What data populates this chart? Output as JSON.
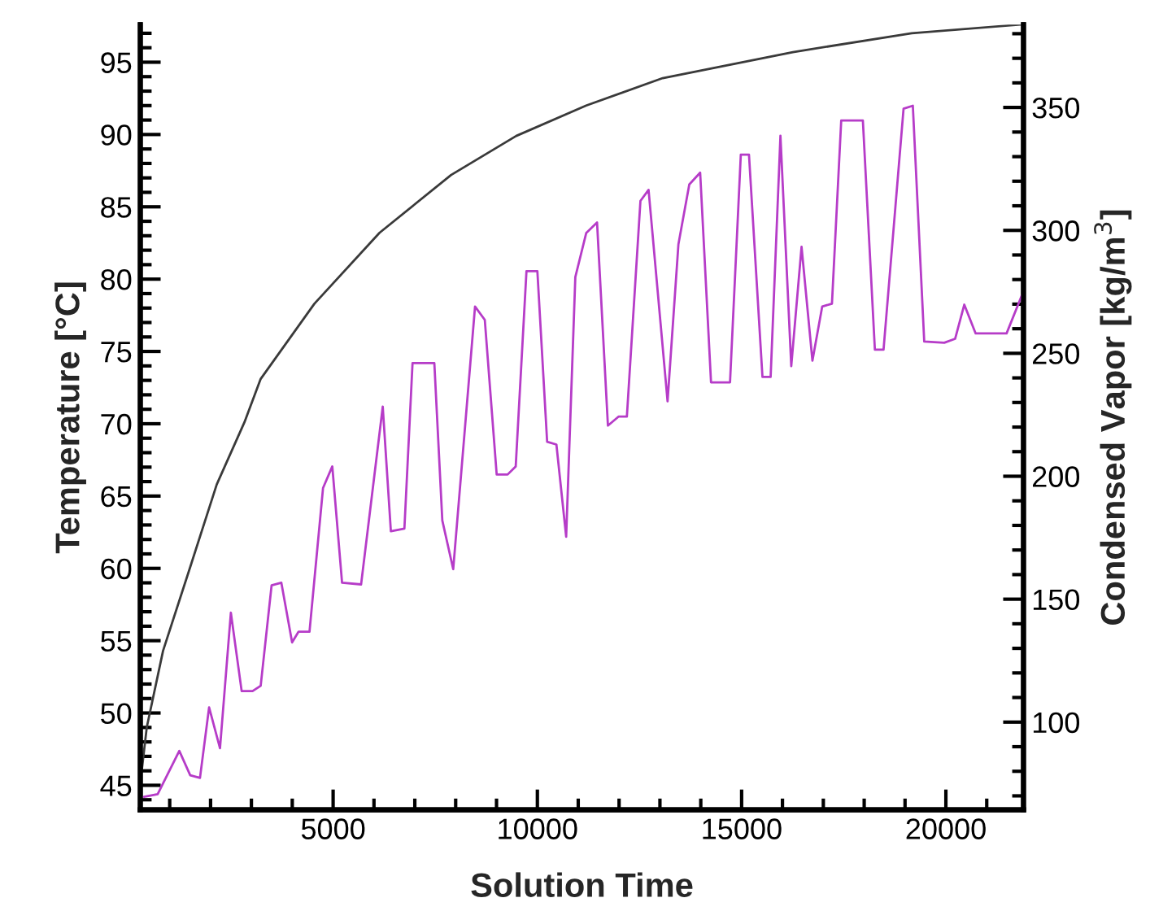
{
  "chart_data": {
    "type": "line",
    "xlabel": "Solution Time",
    "ylabel": "Temperature [°C]",
    "y2label": "Condensed Vapor [kg/m$^{3}$]",
    "xlim": [
      280,
      21900
    ],
    "ylim": [
      43.3,
      97.6
    ],
    "y2lim": [
      64.3,
      383.7
    ],
    "xticks": [
      {
        "value": 1000,
        "label": null
      },
      {
        "value": 2000,
        "label": null
      },
      {
        "value": 3000,
        "label": null
      },
      {
        "value": 4000,
        "label": null
      },
      5000,
      {
        "value": 6000,
        "label": null
      },
      {
        "value": 7000,
        "label": null
      },
      {
        "value": 8000,
        "label": null
      },
      {
        "value": 9000,
        "label": null
      },
      10000,
      {
        "value": 11000,
        "label": null
      },
      {
        "value": 12000,
        "label": null
      },
      {
        "value": 13000,
        "label": null
      },
      {
        "value": 14000,
        "label": null
      },
      15000,
      {
        "value": 16000,
        "label": null
      },
      {
        "value": 17000,
        "label": null
      },
      {
        "value": 18000,
        "label": null
      },
      {
        "value": 19000,
        "label": null
      },
      20000,
      {
        "value": 21000,
        "label": null
      }
    ],
    "yticks": [
      {
        "value": 44,
        "label": null
      },
      45,
      {
        "value": 46,
        "label": null
      },
      {
        "value": 47,
        "label": null
      },
      {
        "value": 48,
        "label": null
      },
      {
        "value": 49,
        "label": null
      },
      50,
      {
        "value": 51,
        "label": null
      },
      {
        "value": 52,
        "label": null
      },
      {
        "value": 53,
        "label": null
      },
      {
        "value": 54,
        "label": null
      },
      55,
      {
        "value": 56,
        "label": null
      },
      {
        "value": 57,
        "label": null
      },
      {
        "value": 58,
        "label": null
      },
      {
        "value": 59,
        "label": null
      },
      60,
      {
        "value": 61,
        "label": null
      },
      {
        "value": 62,
        "label": null
      },
      {
        "value": 63,
        "label": null
      },
      {
        "value": 64,
        "label": null
      },
      65,
      {
        "value": 66,
        "label": null
      },
      {
        "value": 67,
        "label": null
      },
      {
        "value": 68,
        "label": null
      },
      {
        "value": 69,
        "label": null
      },
      70,
      {
        "value": 71,
        "label": null
      },
      {
        "value": 72,
        "label": null
      },
      {
        "value": 73,
        "label": null
      },
      {
        "value": 74,
        "label": null
      },
      75,
      {
        "value": 76,
        "label": null
      },
      {
        "value": 77,
        "label": null
      },
      {
        "value": 78,
        "label": null
      },
      {
        "value": 79,
        "label": null
      },
      80,
      {
        "value": 81,
        "label": null
      },
      {
        "value": 82,
        "label": null
      },
      {
        "value": 83,
        "label": null
      },
      {
        "value": 84,
        "label": null
      },
      85,
      {
        "value": 86,
        "label": null
      },
      {
        "value": 87,
        "label": null
      },
      {
        "value": 88,
        "label": null
      },
      {
        "value": 89,
        "label": null
      },
      90,
      {
        "value": 91,
        "label": null
      },
      {
        "value": 92,
        "label": null
      },
      {
        "value": 93,
        "label": null
      },
      {
        "value": 94,
        "label": null
      },
      95,
      {
        "value": 96,
        "label": null
      },
      {
        "value": 97,
        "label": null
      }
    ],
    "y2ticks": [
      {
        "value": 70,
        "label": null
      },
      {
        "value": 80,
        "label": null
      },
      {
        "value": 90,
        "label": null
      },
      100,
      {
        "value": 110,
        "label": null
      },
      {
        "value": 120,
        "label": null
      },
      {
        "value": 130,
        "label": null
      },
      {
        "value": 140,
        "label": null
      },
      150,
      {
        "value": 160,
        "label": null
      },
      {
        "value": 170,
        "label": null
      },
      {
        "value": 180,
        "label": null
      },
      {
        "value": 190,
        "label": null
      },
      200,
      {
        "value": 210,
        "label": null
      },
      {
        "value": 220,
        "label": null
      },
      {
        "value": 230,
        "label": null
      },
      {
        "value": 240,
        "label": null
      },
      250,
      {
        "value": 260,
        "label": null
      },
      {
        "value": 270,
        "label": null
      },
      {
        "value": 280,
        "label": null
      },
      {
        "value": 290,
        "label": null
      },
      300,
      {
        "value": 310,
        "label": null
      },
      {
        "value": 320,
        "label": null
      },
      {
        "value": 330,
        "label": null
      },
      {
        "value": 340,
        "label": null
      },
      350,
      {
        "value": 360,
        "label": null
      },
      {
        "value": 370,
        "label": null
      },
      {
        "value": 380,
        "label": null
      }
    ],
    "series": [
      {
        "color": "#3a3a3a",
        "x": [
          319,
          438,
          837,
          1514,
          2151,
          2829,
          3227,
          4542,
          6135,
          7888,
          9482,
          11195,
          13068,
          16255,
          19163,
          21832
        ],
        "values": [
          46.1,
          49.0,
          54.3,
          60.2,
          65.8,
          70.1,
          73.1,
          78.3,
          83.2,
          87.2,
          89.9,
          92.0,
          93.9,
          95.7,
          97.0,
          97.6
        ]
      },
      {
        "color": "#b63cc8",
        "axis": "y2",
        "x": [
          371,
          705,
          1235,
          1502,
          1741,
          1964,
          2231,
          2497,
          2761,
          3028,
          3227,
          3494,
          3733,
          3996,
          4155,
          4422,
          4753,
          4980,
          5219,
          5685,
          6215,
          6414,
          6745,
          6944,
          7478,
          7673,
          7940,
          8474,
          8713,
          9004,
          9271,
          9470,
          9733,
          10000,
          10239,
          10466,
          10705,
          10929,
          11195,
          11461,
          11727,
          11992,
          12191,
          12523,
          12722,
          13187,
          13453,
          13719,
          13985,
          14251,
          14716,
          14980,
          15180,
          15510,
          15710,
          15950,
          16215,
          16467,
          16733,
          16972,
          17211,
          17438,
          17968,
          18262,
          18474,
          18964,
          19191,
          19470,
          19960,
          20226,
          20450,
          20729,
          21486,
          21884
        ],
        "values": [
          69.6,
          70.7,
          88.3,
          78.4,
          77.3,
          106,
          89.4,
          144.5,
          112.6,
          112.6,
          114.8,
          155.6,
          156.7,
          132.4,
          136.8,
          136.8,
          195.2,
          204,
          156.7,
          156,
          228.3,
          177.6,
          178.7,
          246,
          246,
          182,
          162.2,
          269,
          263.6,
          200.7,
          200.7,
          204,
          283.4,
          283.4,
          214,
          212.9,
          175.4,
          281,
          298.9,
          303.2,
          220.6,
          224.3,
          224.3,
          312,
          316.5,
          230.5,
          294.4,
          318.7,
          323.5,
          238.2,
          238.2,
          330.8,
          330.8,
          240.4,
          240.4,
          338.5,
          244.8,
          293.3,
          247,
          269,
          270.2,
          344.7,
          344.7,
          251.5,
          251.5,
          349.5,
          350.7,
          254.8,
          254.3,
          255.9,
          269.8,
          258.1,
          258.1,
          274.6
        ]
      }
    ]
  }
}
